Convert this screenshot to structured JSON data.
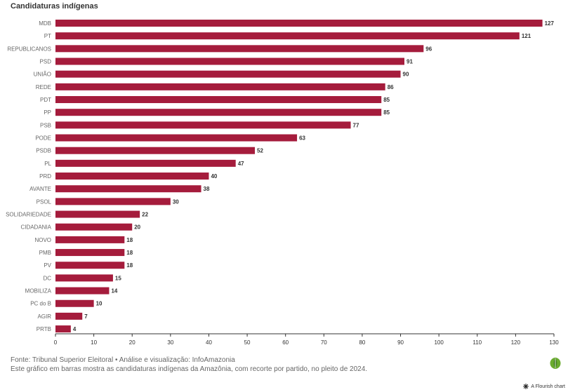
{
  "chart_data": {
    "type": "bar",
    "orientation": "horizontal",
    "title": "Candidaturas indígenas",
    "categories": [
      "MDB",
      "PT",
      "REPUBLICANOS",
      "PSD",
      "UNIÃO",
      "REDE",
      "PDT",
      "PP",
      "PSB",
      "PODE",
      "PSDB",
      "PL",
      "PRD",
      "AVANTE",
      "PSOL",
      "SOLIDARIEDADE",
      "CIDADANIA",
      "NOVO",
      "PMB",
      "PV",
      "DC",
      "MOBILIZA",
      "PC do B",
      "AGIR",
      "PRTB"
    ],
    "values": [
      127,
      121,
      96,
      91,
      90,
      86,
      85,
      85,
      77,
      63,
      52,
      47,
      40,
      38,
      30,
      22,
      20,
      18,
      18,
      18,
      15,
      14,
      10,
      7,
      4
    ],
    "xlim": [
      0,
      130
    ],
    "xticks": [
      0,
      10,
      20,
      30,
      40,
      50,
      60,
      70,
      80,
      90,
      100,
      110,
      120,
      130
    ],
    "grid": false,
    "bar_color": "#a51c3c"
  },
  "footer": {
    "source": "Fonte: Tribunal Superior Eleitoral • Análise e visualização: InfoAmazonia",
    "description": "Este gráfico em barras mostra as candidaturas indígenas da Amazônia, com recorte por partido, no pleito de 2024."
  },
  "flourish": {
    "icon": "flourish-asterisk-icon",
    "text": "A Flourish chart"
  },
  "brand_logo_icon": "green-leaf-logo-icon"
}
